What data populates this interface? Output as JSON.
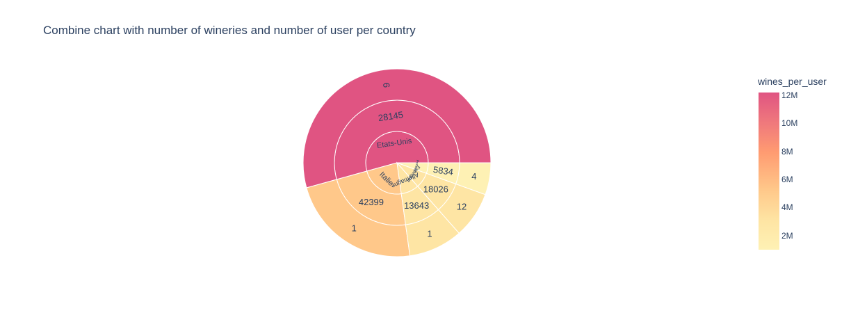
{
  "title": "Combine chart with number of wineries and number of user per country",
  "colorbar": {
    "title": "wines_per_user",
    "ticks": [
      "12M",
      "10M",
      "8M",
      "6M",
      "4M",
      "2M"
    ],
    "tick_values": [
      12,
      10,
      8,
      6,
      4,
      2
    ],
    "range": [
      1,
      12.2
    ],
    "colorscale": [
      "#fef1b4",
      "#fee5a4",
      "#ffc88a",
      "#ff9b71",
      "#f07a7c",
      "#e05482"
    ]
  },
  "chart_data": {
    "type": "sunburst",
    "rings": [
      "country",
      "number",
      "count"
    ],
    "countries": [
      {
        "name": "Etats-Unis",
        "number": "28145",
        "count": "6",
        "angle_share": 0.543,
        "color": "#e05482"
      },
      {
        "name": "Italie",
        "number": "42399",
        "count": "1",
        "angle_share": 0.229,
        "color": "#ffc88a"
      },
      {
        "name": "Allemagne",
        "number": "13643",
        "count": "1",
        "angle_share": 0.093,
        "color": "#fee5a4"
      },
      {
        "name": "Espagne",
        "number": "18026",
        "count": "12",
        "angle_share": 0.08,
        "color": "#fee5a4"
      },
      {
        "name": "Portugal",
        "number": "5834",
        "count": "4",
        "angle_share": 0.055,
        "color": "#fef1b4"
      }
    ]
  }
}
